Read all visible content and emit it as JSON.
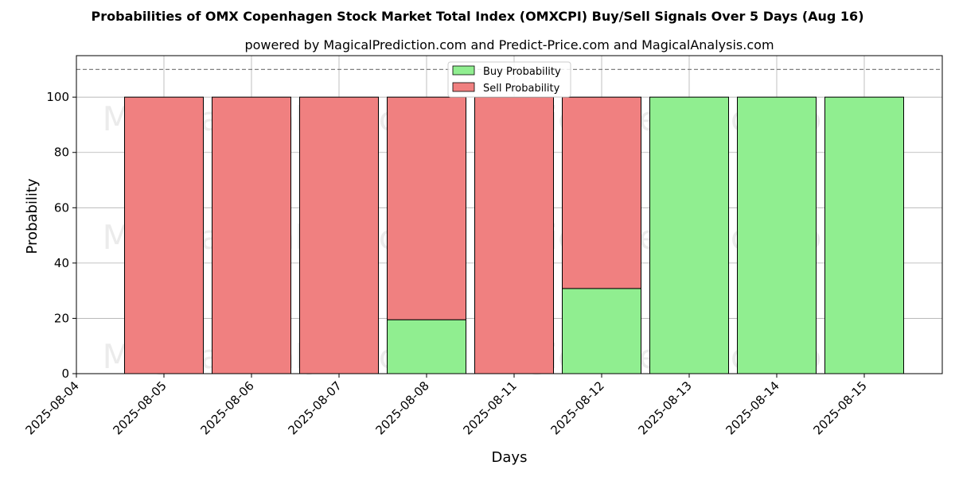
{
  "chart_data": {
    "type": "bar",
    "stacked": true,
    "title": "Probabilities of OMX Copenhagen Stock Market Total Index (OMXCPI) Buy/Sell Signals Over 5 Days (Aug 16)",
    "subtitle": "powered by MagicalPrediction.com and Predict-Price.com and MagicalAnalysis.com",
    "xlabel": "Days",
    "ylabel": "Probability",
    "x_tick_labels": [
      "2025-08-04",
      "2025-08-05",
      "2025-08-06",
      "2025-08-07",
      "2025-08-08",
      "2025-08-11",
      "2025-08-12",
      "2025-08-13",
      "2025-08-14",
      "2025-08-15"
    ],
    "categories": [
      "2025-08-05",
      "2025-08-06",
      "2025-08-07",
      "2025-08-08",
      "2025-08-11",
      "2025-08-12",
      "2025-08-13",
      "2025-08-14",
      "2025-08-15"
    ],
    "series": [
      {
        "name": "Buy Probability",
        "color": "#90ee90",
        "values": [
          0,
          0,
          0,
          19.5,
          0,
          30.8,
          100,
          100,
          100
        ]
      },
      {
        "name": "Sell Probability",
        "color": "#f08080",
        "values": [
          100,
          100,
          100,
          80.5,
          100,
          69.2,
          0,
          0,
          0
        ]
      }
    ],
    "ylim": [
      0,
      115
    ],
    "yticks": [
      0,
      20,
      40,
      60,
      80,
      100
    ],
    "reference_line": 110,
    "grid": true,
    "legend_position": "top-center",
    "watermarks": [
      "MagicalAnalysis.com",
      "MagicalPrediction.com"
    ]
  }
}
